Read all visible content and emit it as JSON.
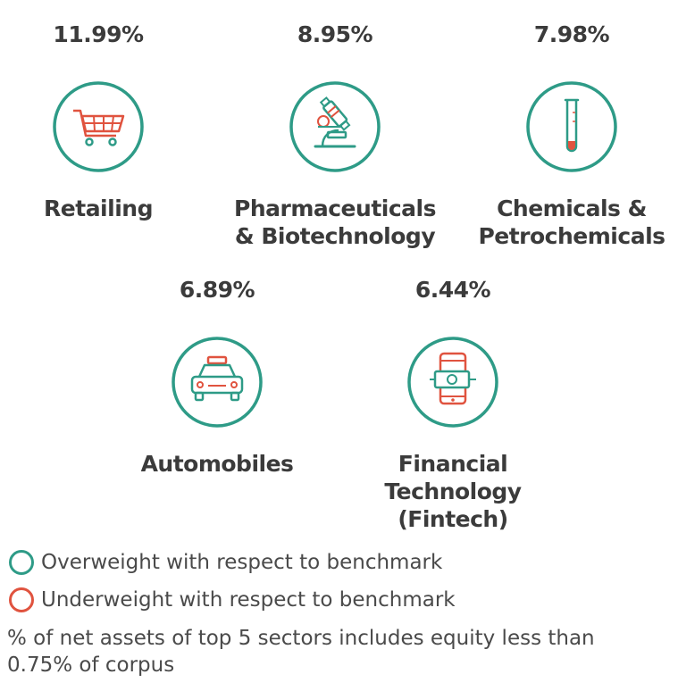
{
  "colors": {
    "overweight": "#2e9b87",
    "underweight": "#e0533f"
  },
  "sectors": [
    {
      "percent": "11.99%",
      "name": "Retailing",
      "icon": "shopping-cart-icon",
      "weighting": "overweight"
    },
    {
      "percent": "8.95%",
      "name": "Pharmaceuticals\n& Biotechnology",
      "icon": "microscope-icon",
      "weighting": "overweight"
    },
    {
      "percent": "7.98%",
      "name": "Chemicals &\nPetrochemicals",
      "icon": "test-tube-icon",
      "weighting": "overweight"
    },
    {
      "percent": "6.89%",
      "name": "Automobiles",
      "icon": "car-icon",
      "weighting": "overweight"
    },
    {
      "percent": "6.44%",
      "name": "Financial\nTechnology\n(Fintech)",
      "icon": "mobile-payment-icon",
      "weighting": "overweight"
    }
  ],
  "legend": {
    "overweight": "Overweight with respect to benchmark",
    "underweight": "Underweight with respect to benchmark"
  },
  "note": "% of net assets of top 5 sectors includes equity less than 0.75% of corpus"
}
